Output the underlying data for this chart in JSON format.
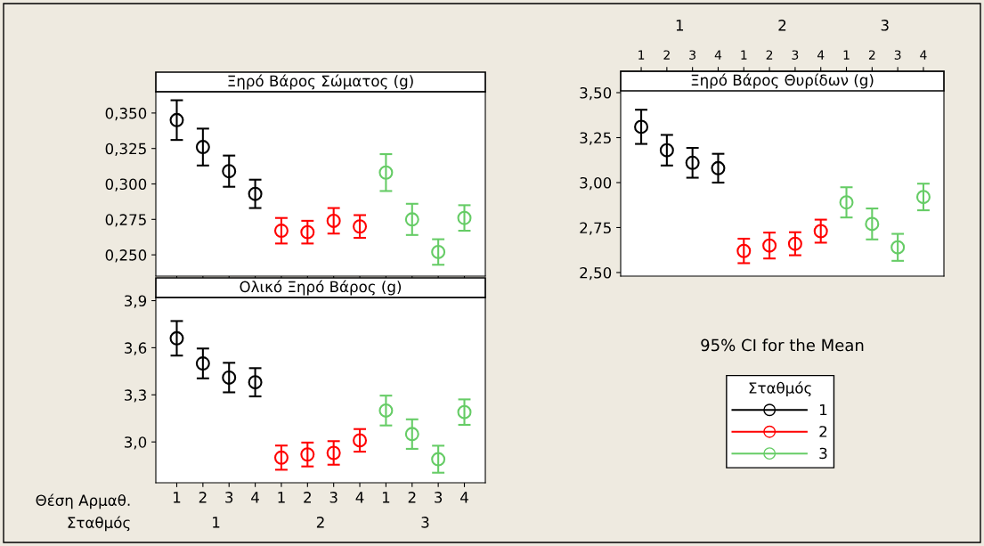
{
  "chart_data": [
    {
      "type": "scatter",
      "title": "Ξηρό Βάρος Σώματος (g)",
      "categories": [
        "1",
        "2",
        "3",
        "4",
        "1",
        "2",
        "3",
        "4",
        "1",
        "2",
        "3",
        "4"
      ],
      "ylim": [
        0.235,
        0.365
      ],
      "yticks": [
        {
          "value": 0.25,
          "label": "0,250"
        },
        {
          "value": 0.275,
          "label": "0,275"
        },
        {
          "value": 0.3,
          "label": "0,300"
        },
        {
          "value": 0.325,
          "label": "0,325"
        },
        {
          "value": 0.35,
          "label": "0,350"
        }
      ],
      "tick_labels": "y",
      "marker": "circle",
      "grid": false,
      "series": [
        {
          "color": "#000000",
          "values": [
            0.345,
            0.326,
            0.309,
            0.293,
            null,
            null,
            null,
            null,
            null,
            null,
            null,
            null
          ],
          "errors": [
            0.014,
            0.013,
            0.011,
            0.01,
            null,
            null,
            null,
            null,
            null,
            null,
            null,
            null
          ]
        },
        {
          "color": "#ff0000",
          "values": [
            null,
            null,
            null,
            null,
            0.267,
            0.266,
            0.274,
            0.27,
            null,
            null,
            null,
            null
          ],
          "errors": [
            null,
            null,
            null,
            null,
            0.009,
            0.008,
            0.009,
            0.008,
            null,
            null,
            null,
            null
          ]
        },
        {
          "color": "#66cc66",
          "values": [
            null,
            null,
            null,
            null,
            null,
            null,
            null,
            null,
            0.308,
            0.275,
            0.252,
            0.276
          ],
          "errors": [
            null,
            null,
            null,
            null,
            null,
            null,
            null,
            null,
            0.013,
            0.011,
            0.009,
            0.009
          ]
        }
      ]
    },
    {
      "type": "scatter",
      "title": "Ολικό Ξηρό Βάρος (g)",
      "xlabel": "Θέση Αρμαθ.",
      "annotations": [
        "Σταθμός"
      ],
      "legend_title": "Σταθμός",
      "legend": "right",
      "categories": [
        "1",
        "2",
        "3",
        "4",
        "1",
        "2",
        "3",
        "4",
        "1",
        "2",
        "3",
        "4"
      ],
      "ylim": [
        2.74,
        3.92
      ],
      "yticks": [
        {
          "value": 3.0,
          "label": "3,0"
        },
        {
          "value": 3.3,
          "label": "3,3"
        },
        {
          "value": 3.6,
          "label": "3,6"
        },
        {
          "value": 3.9,
          "label": "3,9"
        }
      ],
      "marker": "circle",
      "grid": false,
      "series": [
        {
          "name": "1",
          "color": "#000000",
          "values": [
            3.66,
            3.5,
            3.41,
            3.38,
            null,
            null,
            null,
            null,
            null,
            null,
            null,
            null
          ],
          "errors": [
            0.11,
            0.095,
            0.094,
            0.09,
            null,
            null,
            null,
            null,
            null,
            null,
            null,
            null
          ]
        },
        {
          "name": "2",
          "color": "#ff0000",
          "values": [
            null,
            null,
            null,
            null,
            2.9,
            2.92,
            2.93,
            3.01,
            null,
            null,
            null,
            null
          ],
          "errors": [
            null,
            null,
            null,
            null,
            0.077,
            0.076,
            0.075,
            0.072,
            null,
            null,
            null,
            null
          ]
        },
        {
          "name": "3",
          "color": "#66cc66",
          "values": [
            null,
            null,
            null,
            null,
            null,
            null,
            null,
            null,
            3.2,
            3.05,
            2.89,
            3.19
          ],
          "errors": [
            null,
            null,
            null,
            null,
            null,
            null,
            null,
            null,
            0.095,
            0.094,
            0.086,
            0.081
          ]
        }
      ]
    },
    {
      "type": "scatter",
      "title": "Ξηρό Βάρος Θυρίδων (g)",
      "subtitle": "95% CI for the Mean",
      "annotations": [
        "1",
        "2",
        "3"
      ],
      "categories": [
        "1",
        "2",
        "3",
        "4",
        "1",
        "2",
        "3",
        "4",
        "1",
        "2",
        "3",
        "4"
      ],
      "ylim": [
        2.48,
        3.51
      ],
      "yticks": [
        {
          "value": 2.5,
          "label": "2,50"
        },
        {
          "value": 2.75,
          "label": "2,75"
        },
        {
          "value": 3.0,
          "label": "3,00"
        },
        {
          "value": 3.25,
          "label": "3,25"
        },
        {
          "value": 3.5,
          "label": "3,50"
        }
      ],
      "marker": "circle",
      "grid": false,
      "series": [
        {
          "color": "#000000",
          "values": [
            3.31,
            3.18,
            3.11,
            3.08,
            null,
            null,
            null,
            null,
            null,
            null,
            null,
            null
          ],
          "errors": [
            0.095,
            0.085,
            0.083,
            0.08,
            null,
            null,
            null,
            null,
            null,
            null,
            null,
            null
          ]
        },
        {
          "color": "#ff0000",
          "values": [
            null,
            null,
            null,
            null,
            2.62,
            2.65,
            2.66,
            2.73,
            null,
            null,
            null,
            null
          ],
          "errors": [
            null,
            null,
            null,
            null,
            0.068,
            0.072,
            0.064,
            0.064,
            null,
            null,
            null,
            null
          ]
        },
        {
          "color": "#66cc66",
          "values": [
            null,
            null,
            null,
            null,
            null,
            null,
            null,
            null,
            2.89,
            2.77,
            2.64,
            2.92
          ],
          "errors": [
            null,
            null,
            null,
            null,
            null,
            null,
            null,
            null,
            0.084,
            0.086,
            0.075,
            0.074
          ]
        }
      ]
    }
  ]
}
